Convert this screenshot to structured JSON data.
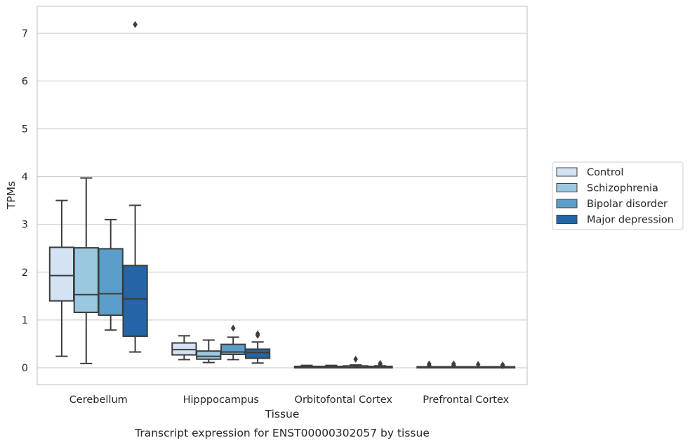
{
  "chart_data": {
    "type": "box",
    "xlabel": "Tissue",
    "ylabel": "TPMs",
    "caption": "Transcript expression for ENST00000302057 by tissue",
    "ylim": [
      -0.35,
      7.55
    ],
    "yticks": [
      0,
      1,
      2,
      3,
      4,
      5,
      6,
      7
    ],
    "grid": "horizontal",
    "legend_position": "right",
    "categories": [
      "Cerebellum",
      "Hipppocampus",
      "Orbitofontal Cortex",
      "Prefrontal Cortex"
    ],
    "series": [
      {
        "name": "Control",
        "color": "#d4e3f3",
        "boxes": [
          {
            "whislo": 0.24,
            "q1": 1.4,
            "med": 1.93,
            "q3": 2.52,
            "whishi": 3.5,
            "fliers": []
          },
          {
            "whislo": 0.17,
            "q1": 0.27,
            "med": 0.38,
            "q3": 0.52,
            "whishi": 0.67,
            "fliers": []
          },
          {
            "whislo": 0.0,
            "q1": 0.0,
            "med": 0.01,
            "q3": 0.03,
            "whishi": 0.05,
            "fliers": []
          },
          {
            "whislo": 0.0,
            "q1": 0.0,
            "med": 0.0,
            "q3": 0.01,
            "whishi": 0.02,
            "fliers": [
              0.05,
              0.08
            ]
          }
        ]
      },
      {
        "name": "Schizophrenia",
        "color": "#9ac8df",
        "boxes": [
          {
            "whislo": 0.09,
            "q1": 1.16,
            "med": 1.53,
            "q3": 2.51,
            "whishi": 3.97,
            "fliers": []
          },
          {
            "whislo": 0.11,
            "q1": 0.18,
            "med": 0.24,
            "q3": 0.35,
            "whishi": 0.58,
            "fliers": []
          },
          {
            "whislo": 0.0,
            "q1": 0.0,
            "med": 0.01,
            "q3": 0.03,
            "whishi": 0.05,
            "fliers": []
          },
          {
            "whislo": 0.0,
            "q1": 0.0,
            "med": 0.0,
            "q3": 0.01,
            "whishi": 0.02,
            "fliers": [
              0.05,
              0.08
            ]
          }
        ]
      },
      {
        "name": "Bipolar disorder",
        "color": "#5a9ec9",
        "boxes": [
          {
            "whislo": 0.79,
            "q1": 1.1,
            "med": 1.55,
            "q3": 2.49,
            "whishi": 3.1,
            "fliers": []
          },
          {
            "whislo": 0.17,
            "q1": 0.28,
            "med": 0.33,
            "q3": 0.49,
            "whishi": 0.64,
            "fliers": [
              0.83
            ]
          },
          {
            "whislo": 0.0,
            "q1": 0.0,
            "med": 0.01,
            "q3": 0.04,
            "whishi": 0.06,
            "fliers": [
              0.18
            ]
          },
          {
            "whislo": 0.0,
            "q1": 0.0,
            "med": 0.0,
            "q3": 0.01,
            "whishi": 0.02,
            "fliers": [
              0.07
            ]
          }
        ]
      },
      {
        "name": "Major depression",
        "color": "#2465a8",
        "boxes": [
          {
            "whislo": 0.33,
            "q1": 0.66,
            "med": 1.44,
            "q3": 2.14,
            "whishi": 3.4,
            "fliers": [
              7.18
            ]
          },
          {
            "whislo": 0.1,
            "q1": 0.2,
            "med": 0.32,
            "q3": 0.39,
            "whishi": 0.54,
            "fliers": [
              0.68,
              0.71
            ]
          },
          {
            "whislo": 0.0,
            "q1": 0.0,
            "med": 0.01,
            "q3": 0.03,
            "whishi": 0.04,
            "fliers": [
              0.07,
              0.09
            ]
          },
          {
            "whislo": 0.0,
            "q1": 0.0,
            "med": 0.0,
            "q3": 0.01,
            "whishi": 0.02,
            "fliers": [
              0.04,
              0.06
            ]
          }
        ]
      }
    ]
  }
}
